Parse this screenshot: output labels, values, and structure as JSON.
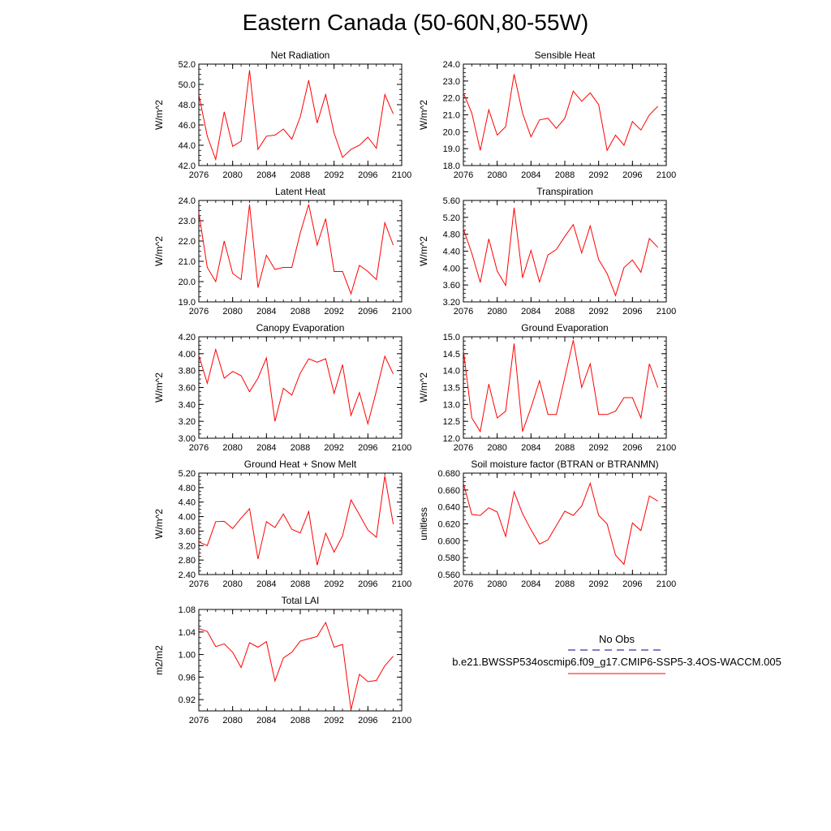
{
  "title": "Eastern Canada (50-60N,80-55W)",
  "legend": {
    "obs_label": "No Obs",
    "model_label": "b.e21.BWSSP534oscmip6.f09_g17.CMIP6-SSP5-3.4OS-WACCM.005",
    "obs_color": "#00008b",
    "model_color": "#ff0000"
  },
  "chart_data": [
    {
      "type": "line",
      "title": "Net Radiation",
      "xlabel": "",
      "ylabel": "W/m^2",
      "xlim": [
        2076,
        2100
      ],
      "ylim": [
        42.0,
        52.0
      ],
      "xticks": [
        "2076",
        "2080",
        "2084",
        "2088",
        "2092",
        "2096",
        "2100"
      ],
      "yticks": [
        "42.0",
        "44.0",
        "46.0",
        "48.0",
        "50.0",
        "52.0"
      ],
      "x": [
        2076,
        2077,
        2078,
        2079,
        2080,
        2081,
        2082,
        2083,
        2084,
        2085,
        2086,
        2087,
        2088,
        2089,
        2090,
        2091,
        2092,
        2093,
        2094,
        2095,
        2096,
        2097,
        2098,
        2099
      ],
      "series": [
        {
          "color": "#ff0000",
          "values": [
            49.0,
            44.9,
            42.6,
            47.3,
            43.9,
            44.4,
            51.4,
            43.6,
            44.9,
            45.0,
            45.6,
            44.6,
            46.8,
            50.4,
            46.2,
            49.0,
            45.2,
            42.8,
            43.6,
            44.0,
            44.8,
            43.7,
            49.0,
            47.1
          ]
        }
      ]
    },
    {
      "type": "line",
      "title": "Sensible Heat",
      "xlabel": "",
      "ylabel": "W/m^2",
      "xlim": [
        2076,
        2100
      ],
      "ylim": [
        18.0,
        24.0
      ],
      "xticks": [
        "2076",
        "2080",
        "2084",
        "2088",
        "2092",
        "2096",
        "2100"
      ],
      "yticks": [
        "18.0",
        "19.0",
        "20.0",
        "21.0",
        "22.0",
        "23.0",
        "24.0"
      ],
      "x": [
        2076,
        2077,
        2078,
        2079,
        2080,
        2081,
        2082,
        2083,
        2084,
        2085,
        2086,
        2087,
        2088,
        2089,
        2090,
        2091,
        2092,
        2093,
        2094,
        2095,
        2096,
        2097,
        2098,
        2099
      ],
      "series": [
        {
          "color": "#ff0000",
          "values": [
            22.3,
            21.1,
            18.9,
            21.3,
            19.8,
            20.3,
            23.4,
            21.1,
            19.7,
            20.7,
            20.8,
            20.2,
            20.8,
            22.4,
            21.8,
            22.3,
            21.6,
            18.9,
            19.8,
            19.2,
            20.6,
            20.1,
            21.0,
            21.5
          ]
        }
      ]
    },
    {
      "type": "line",
      "title": "Latent Heat",
      "xlabel": "",
      "ylabel": "W/m^2",
      "xlim": [
        2076,
        2100
      ],
      "ylim": [
        19.0,
        24.0
      ],
      "xticks": [
        "2076",
        "2080",
        "2084",
        "2088",
        "2092",
        "2096",
        "2100"
      ],
      "yticks": [
        "19.0",
        "20.0",
        "21.0",
        "22.0",
        "23.0",
        "24.0"
      ],
      "x": [
        2076,
        2077,
        2078,
        2079,
        2080,
        2081,
        2082,
        2083,
        2084,
        2085,
        2086,
        2087,
        2088,
        2089,
        2090,
        2091,
        2092,
        2093,
        2094,
        2095,
        2096,
        2097,
        2098,
        2099
      ],
      "series": [
        {
          "color": "#ff0000",
          "values": [
            23.4,
            20.7,
            20.0,
            22.0,
            20.4,
            20.1,
            23.8,
            19.7,
            21.3,
            20.6,
            20.7,
            20.7,
            22.4,
            23.8,
            21.8,
            23.1,
            20.5,
            20.5,
            19.4,
            20.8,
            20.5,
            20.1,
            22.9,
            21.8
          ]
        }
      ]
    },
    {
      "type": "line",
      "title": "Transpiration",
      "xlabel": "",
      "ylabel": "W/m^2",
      "xlim": [
        2076,
        2100
      ],
      "ylim": [
        3.2,
        5.6
      ],
      "xticks": [
        "2076",
        "2080",
        "2084",
        "2088",
        "2092",
        "2096",
        "2100"
      ],
      "yticks": [
        "3.20",
        "3.60",
        "4.00",
        "4.40",
        "4.80",
        "5.20",
        "5.60"
      ],
      "x": [
        2076,
        2077,
        2078,
        2079,
        2080,
        2081,
        2082,
        2083,
        2084,
        2085,
        2086,
        2087,
        2088,
        2089,
        2090,
        2091,
        2092,
        2093,
        2094,
        2095,
        2096,
        2097,
        2098,
        2099
      ],
      "series": [
        {
          "color": "#ff0000",
          "values": [
            4.93,
            4.35,
            3.66,
            4.69,
            3.93,
            3.59,
            5.43,
            3.77,
            4.42,
            3.67,
            4.31,
            4.44,
            4.75,
            5.03,
            4.36,
            5.0,
            4.2,
            3.87,
            3.35,
            4.01,
            4.19,
            3.9,
            4.7,
            4.49
          ]
        }
      ]
    },
    {
      "type": "line",
      "title": "Canopy Evaporation",
      "xlabel": "",
      "ylabel": "W/m^2",
      "xlim": [
        2076,
        2100
      ],
      "ylim": [
        3.0,
        4.2
      ],
      "xticks": [
        "2076",
        "2080",
        "2084",
        "2088",
        "2092",
        "2096",
        "2100"
      ],
      "yticks": [
        "3.00",
        "3.20",
        "3.40",
        "3.60",
        "3.80",
        "4.00",
        "4.20"
      ],
      "x": [
        2076,
        2077,
        2078,
        2079,
        2080,
        2081,
        2082,
        2083,
        2084,
        2085,
        2086,
        2087,
        2088,
        2089,
        2090,
        2091,
        2092,
        2093,
        2094,
        2095,
        2096,
        2097,
        2098,
        2099
      ],
      "series": [
        {
          "color": "#ff0000",
          "values": [
            3.98,
            3.65,
            4.05,
            3.71,
            3.79,
            3.74,
            3.55,
            3.71,
            3.95,
            3.2,
            3.59,
            3.51,
            3.77,
            3.94,
            3.9,
            3.94,
            3.53,
            3.87,
            3.27,
            3.54,
            3.17,
            3.56,
            3.97,
            3.76
          ]
        }
      ]
    },
    {
      "type": "line",
      "title": "Ground Evaporation",
      "xlabel": "",
      "ylabel": "W/m^2",
      "xlim": [
        2076,
        2100
      ],
      "ylim": [
        12.0,
        15.0
      ],
      "xticks": [
        "2076",
        "2080",
        "2084",
        "2088",
        "2092",
        "2096",
        "2100"
      ],
      "yticks": [
        "12.0",
        "12.5",
        "13.0",
        "13.5",
        "14.0",
        "14.5",
        "15.0"
      ],
      "x": [
        2076,
        2077,
        2078,
        2079,
        2080,
        2081,
        2082,
        2083,
        2084,
        2085,
        2086,
        2087,
        2088,
        2089,
        2090,
        2091,
        2092,
        2093,
        2094,
        2095,
        2096,
        2097,
        2098,
        2099
      ],
      "series": [
        {
          "color": "#ff0000",
          "values": [
            14.6,
            12.6,
            12.2,
            13.6,
            12.6,
            12.8,
            14.8,
            12.2,
            12.9,
            13.7,
            12.7,
            12.7,
            13.8,
            14.9,
            13.5,
            14.2,
            12.7,
            12.7,
            12.8,
            13.2,
            13.2,
            12.6,
            14.2,
            13.5
          ]
        }
      ]
    },
    {
      "type": "line",
      "title": "Ground Heat + Snow Melt",
      "xlabel": "",
      "ylabel": "W/m^2",
      "xlim": [
        2076,
        2100
      ],
      "ylim": [
        2.4,
        5.2
      ],
      "xticks": [
        "2076",
        "2080",
        "2084",
        "2088",
        "2092",
        "2096",
        "2100"
      ],
      "yticks": [
        "2.40",
        "2.80",
        "3.20",
        "3.60",
        "4.00",
        "4.40",
        "4.80",
        "5.20"
      ],
      "x": [
        2076,
        2077,
        2078,
        2079,
        2080,
        2081,
        2082,
        2083,
        2084,
        2085,
        2086,
        2087,
        2088,
        2089,
        2090,
        2091,
        2092,
        2093,
        2094,
        2095,
        2096,
        2097,
        2098,
        2099
      ],
      "series": [
        {
          "color": "#ff0000",
          "values": [
            3.3,
            3.2,
            3.86,
            3.87,
            3.67,
            3.96,
            4.22,
            2.83,
            3.86,
            3.7,
            4.07,
            3.65,
            3.55,
            4.14,
            2.66,
            3.54,
            3.02,
            3.47,
            4.46,
            4.05,
            3.63,
            3.43,
            5.12,
            3.79
          ]
        }
      ]
    },
    {
      "type": "line",
      "title": "Soil moisture factor (BTRAN or BTRANMN)",
      "xlabel": "",
      "ylabel": "unitless",
      "xlim": [
        2076,
        2100
      ],
      "ylim": [
        0.56,
        0.68
      ],
      "xticks": [
        "2076",
        "2080",
        "2084",
        "2088",
        "2092",
        "2096",
        "2100"
      ],
      "yticks": [
        "0.560",
        "0.580",
        "0.600",
        "0.620",
        "0.640",
        "0.660",
        "0.680"
      ],
      "x": [
        2076,
        2077,
        2078,
        2079,
        2080,
        2081,
        2082,
        2083,
        2084,
        2085,
        2086,
        2087,
        2088,
        2089,
        2090,
        2091,
        2092,
        2093,
        2094,
        2095,
        2096,
        2097,
        2098,
        2099
      ],
      "series": [
        {
          "color": "#ff0000",
          "values": [
            0.668,
            0.631,
            0.63,
            0.639,
            0.634,
            0.605,
            0.658,
            0.632,
            0.613,
            0.596,
            0.601,
            0.618,
            0.635,
            0.63,
            0.641,
            0.668,
            0.63,
            0.62,
            0.583,
            0.572,
            0.621,
            0.612,
            0.653,
            0.647
          ]
        }
      ]
    },
    {
      "type": "line",
      "title": "Total LAI",
      "xlabel": "",
      "ylabel": "m2/m2",
      "xlim": [
        2076,
        2100
      ],
      "ylim": [
        0.9,
        1.08
      ],
      "xticks": [
        "2076",
        "2080",
        "2084",
        "2088",
        "2092",
        "2096",
        "2100"
      ],
      "yticks": [
        "0.92",
        "0.96",
        "1.00",
        "1.04",
        "1.08"
      ],
      "x": [
        2076,
        2077,
        2078,
        2079,
        2080,
        2081,
        2082,
        2083,
        2084,
        2085,
        2086,
        2087,
        2088,
        2089,
        2090,
        2091,
        2092,
        2093,
        2094,
        2095,
        2096,
        2097,
        2098,
        2099
      ],
      "series": [
        {
          "color": "#ff0000",
          "values": [
            1.046,
            1.041,
            1.014,
            1.019,
            1.004,
            0.977,
            1.021,
            1.013,
            1.023,
            0.953,
            0.994,
            1.004,
            1.024,
            1.028,
            1.032,
            1.057,
            1.013,
            1.018,
            0.902,
            0.965,
            0.952,
            0.954,
            0.98,
            0.997
          ]
        }
      ]
    }
  ]
}
